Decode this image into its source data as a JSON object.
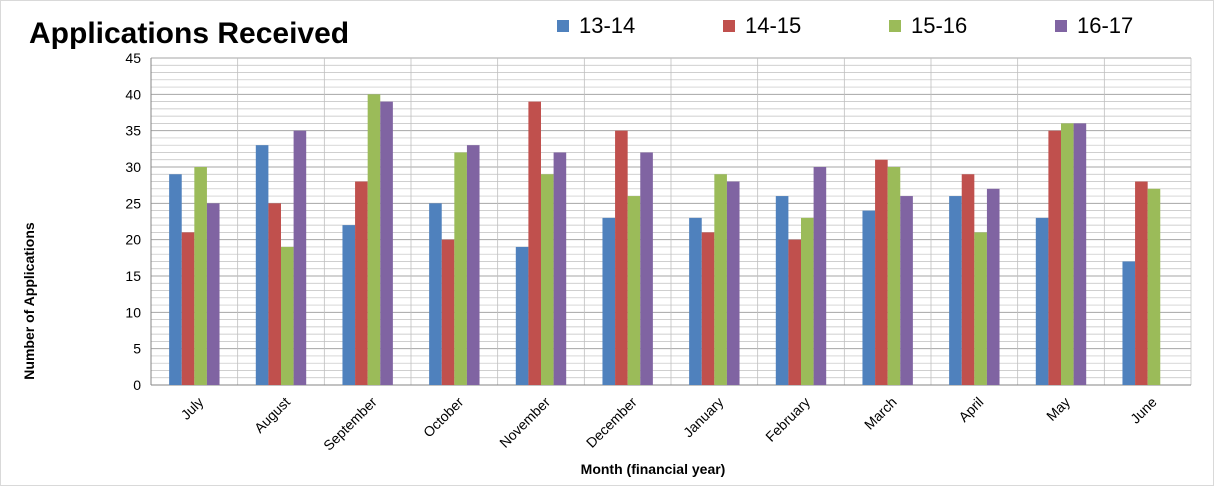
{
  "chart_data": {
    "type": "bar",
    "title": "Applications Received",
    "xlabel": "Month (financial year)",
    "ylabel": "Number of Applications",
    "ylim": [
      0,
      45
    ],
    "ytick_step": 5,
    "grid": true,
    "legend_position": "top-right",
    "categories": [
      "July",
      "August",
      "September",
      "October",
      "November",
      "December",
      "January",
      "February",
      "March",
      "April",
      "May",
      "June"
    ],
    "series": [
      {
        "name": "13-14",
        "color": "#4F81BD",
        "values": [
          29,
          33,
          22,
          25,
          19,
          23,
          23,
          26,
          24,
          26,
          23,
          17
        ]
      },
      {
        "name": "14-15",
        "color": "#C0504D",
        "values": [
          21,
          25,
          28,
          20,
          39,
          35,
          21,
          20,
          31,
          29,
          35,
          28
        ]
      },
      {
        "name": "15-16",
        "color": "#9BBB59",
        "values": [
          30,
          19,
          40,
          32,
          29,
          26,
          29,
          23,
          30,
          21,
          36,
          27
        ]
      },
      {
        "name": "16-17",
        "color": "#8064A2",
        "values": [
          25,
          35,
          39,
          33,
          32,
          32,
          28,
          30,
          26,
          27,
          36,
          null
        ]
      }
    ]
  }
}
